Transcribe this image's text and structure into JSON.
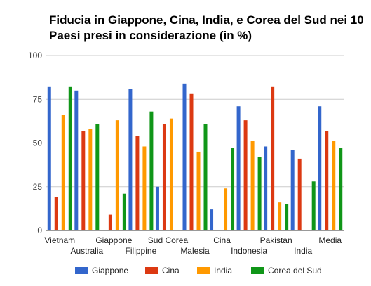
{
  "chart_data": {
    "type": "bar",
    "title_line1": "Fiducia in Giappone, Cina, India, e Corea del Sud nei 10",
    "title_line2": "Paesi presi in considerazione (in %)",
    "ylim": [
      0,
      100
    ],
    "yticks": [
      "0",
      "25",
      "50",
      "75",
      "100"
    ],
    "grid": true,
    "legend_position": "bottom",
    "categories": [
      "Vietnam",
      "Australia",
      "Giappone",
      "Filippine",
      "Sud Corea",
      "Malesia",
      "Cina",
      "Indonesia",
      "Pakistan",
      "India",
      "Media"
    ],
    "series": [
      {
        "name": "Giappone",
        "color": "#3366cc",
        "values": [
          82,
          80,
          null,
          81,
          25,
          84,
          12,
          71,
          48,
          46,
          71
        ]
      },
      {
        "name": "Cina",
        "color": "#dc3912",
        "values": [
          19,
          57,
          9,
          54,
          61,
          78,
          null,
          63,
          82,
          41,
          57
        ]
      },
      {
        "name": "India",
        "color": "#ff9900",
        "values": [
          66,
          58,
          63,
          48,
          64,
          45,
          24,
          51,
          16,
          null,
          51
        ]
      },
      {
        "name": "Corea del Sud",
        "color": "#109618",
        "values": [
          82,
          61,
          21,
          68,
          null,
          61,
          47,
          42,
          15,
          28,
          47
        ]
      }
    ]
  }
}
